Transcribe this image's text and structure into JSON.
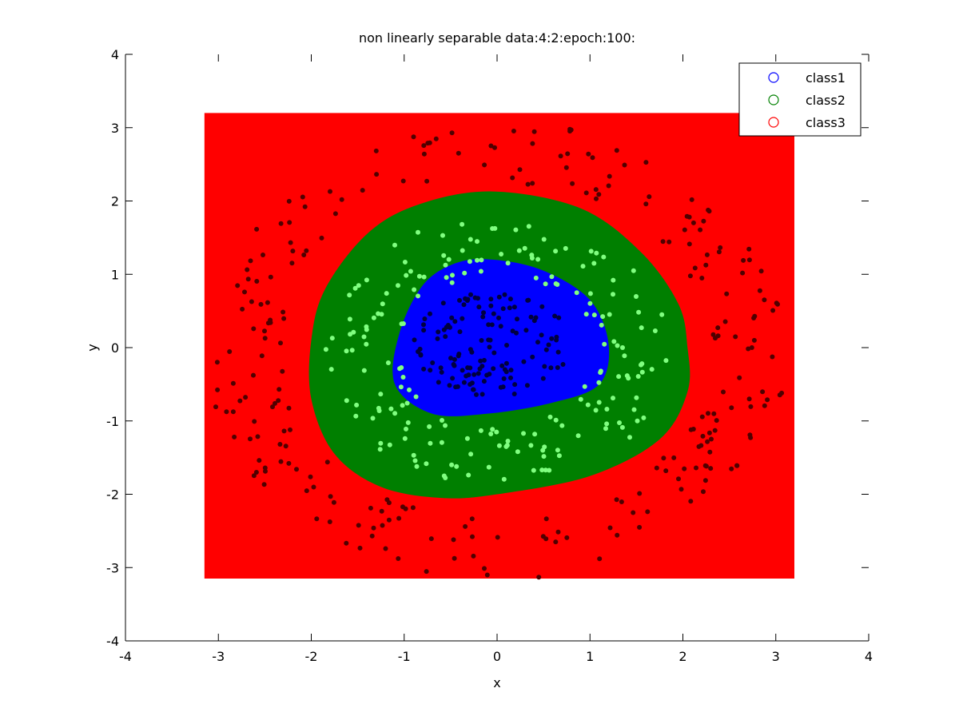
{
  "chart_data": {
    "type": "scatter",
    "title": "non linearly separable data:4:2:epoch:100:",
    "xlabel": "x",
    "ylabel": "y",
    "xlim": [
      -4,
      4
    ],
    "ylim": [
      -4,
      4
    ],
    "xticks": [
      "-4",
      "-3",
      "-2",
      "-1",
      "0",
      "1",
      "2",
      "3",
      "4"
    ],
    "yticks": [
      "-4",
      "-3",
      "-2",
      "-1",
      "0",
      "1",
      "2",
      "3",
      "4"
    ],
    "grid": false,
    "legend_position": "top-right",
    "decision_regions": {
      "domain_x": [
        -3.15,
        3.2
      ],
      "domain_y": [
        -3.15,
        3.2
      ],
      "background_class": "class3",
      "class2_boundary": [
        [
          -0.05,
          2.13
        ],
        [
          0.9,
          1.9
        ],
        [
          1.55,
          1.3
        ],
        [
          1.95,
          0.6
        ],
        [
          2.05,
          0.0
        ],
        [
          2.05,
          -0.6
        ],
        [
          1.75,
          -1.25
        ],
        [
          1.0,
          -1.75
        ],
        [
          0.0,
          -2.0
        ],
        [
          -0.6,
          -2.05
        ],
        [
          -1.25,
          -1.9
        ],
        [
          -1.75,
          -1.45
        ],
        [
          -2.0,
          -0.7
        ],
        [
          -2.0,
          0.1
        ],
        [
          -1.85,
          0.8
        ],
        [
          -1.4,
          1.55
        ],
        [
          -0.85,
          1.95
        ]
      ],
      "class1_boundary": [
        [
          -0.05,
          1.2
        ],
        [
          0.5,
          1.05
        ],
        [
          1.0,
          0.65
        ],
        [
          1.2,
          0.05
        ],
        [
          1.1,
          -0.5
        ],
        [
          0.6,
          -0.75
        ],
        [
          -0.1,
          -0.9
        ],
        [
          -0.7,
          -0.9
        ],
        [
          -1.1,
          -0.5
        ],
        [
          -1.05,
          0.2
        ],
        [
          -0.8,
          0.85
        ],
        [
          -0.45,
          1.15
        ]
      ]
    },
    "series": [
      {
        "name": "class1",
        "legend_color": "#0000ff",
        "region_color": "#0000ff",
        "point_color": "#000040",
        "r_range": [
          0.0,
          0.75
        ],
        "approx_count": 130
      },
      {
        "name": "class2",
        "legend_color": "#008000",
        "region_color": "#007f00",
        "point_color": "#80ff80",
        "r_range": [
          1.05,
          1.85
        ],
        "approx_count": 190
      },
      {
        "name": "class3",
        "legend_color": "#ff0000",
        "region_color": "#ff0000",
        "point_color": "#500000",
        "r_range": [
          2.3,
          3.15
        ],
        "approx_count": 250
      }
    ]
  }
}
